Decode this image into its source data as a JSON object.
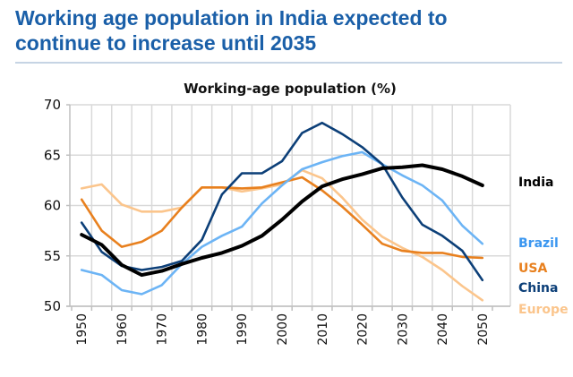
{
  "headline": {
    "line1": "Working age population in India expected to",
    "line2": "continue to increase until 2035",
    "color": "#1a5fa8"
  },
  "chart_data": {
    "type": "line",
    "title": "Working-age population (%)",
    "xlabel": "",
    "ylabel": "",
    "ylim": [
      50,
      70
    ],
    "yticks": [
      50,
      55,
      60,
      65,
      70
    ],
    "x": [
      1950,
      1955,
      1960,
      1965,
      1970,
      1975,
      1980,
      1985,
      1990,
      1995,
      2000,
      2005,
      2010,
      2015,
      2020,
      2025,
      2030,
      2035,
      2040,
      2045,
      2050
    ],
    "xtick_labels": [
      "1950",
      "1960",
      "1970",
      "1980",
      "1990",
      "2000",
      "2010",
      "2020",
      "2030",
      "2040",
      "2050"
    ],
    "grid": true,
    "legend": "right (inline labels at line ends)",
    "series": [
      {
        "name": "Europe",
        "color": "#fbc58c",
        "label_color": "#fbc58c",
        "values": [
          61.7,
          62.1,
          60.1,
          59.4,
          59.4,
          59.8,
          61.8,
          61.8,
          61.4,
          61.7,
          62.1,
          63.5,
          62.7,
          60.8,
          58.6,
          56.9,
          55.8,
          54.9,
          53.6,
          52.0,
          50.6
        ]
      },
      {
        "name": "USA",
        "color": "#e8801e",
        "label_color": "#e8801e",
        "values": [
          60.6,
          57.5,
          55.9,
          56.4,
          57.5,
          59.8,
          61.8,
          61.8,
          61.7,
          61.8,
          62.3,
          62.8,
          61.5,
          59.9,
          58.1,
          56.2,
          55.5,
          55.3,
          55.3,
          54.9,
          54.8
        ]
      },
      {
        "name": "Brazil",
        "color": "#6cb4f5",
        "label_color": "#3a96f0",
        "values": [
          53.6,
          53.1,
          51.6,
          51.2,
          52.1,
          54.2,
          55.9,
          57.0,
          57.9,
          60.2,
          62.0,
          63.6,
          64.3,
          64.9,
          65.3,
          64.1,
          63.0,
          62.0,
          60.5,
          58.0,
          56.2
        ]
      },
      {
        "name": "China",
        "color": "#0c3f78",
        "label_color": "#0c3f78",
        "values": [
          58.3,
          55.4,
          54.0,
          53.6,
          53.9,
          54.5,
          56.6,
          61.1,
          63.2,
          63.2,
          64.4,
          67.2,
          68.2,
          67.1,
          65.8,
          64.1,
          60.8,
          58.1,
          57.0,
          55.5,
          52.6
        ]
      },
      {
        "name": "India",
        "color": "#000000",
        "label_color": "#000000",
        "values": [
          57.1,
          56.1,
          54.1,
          53.1,
          53.5,
          54.2,
          54.8,
          55.3,
          56.0,
          57.0,
          58.6,
          60.4,
          61.9,
          62.6,
          63.1,
          63.7,
          63.8,
          64.0,
          63.6,
          62.9,
          62.0
        ]
      }
    ]
  }
}
